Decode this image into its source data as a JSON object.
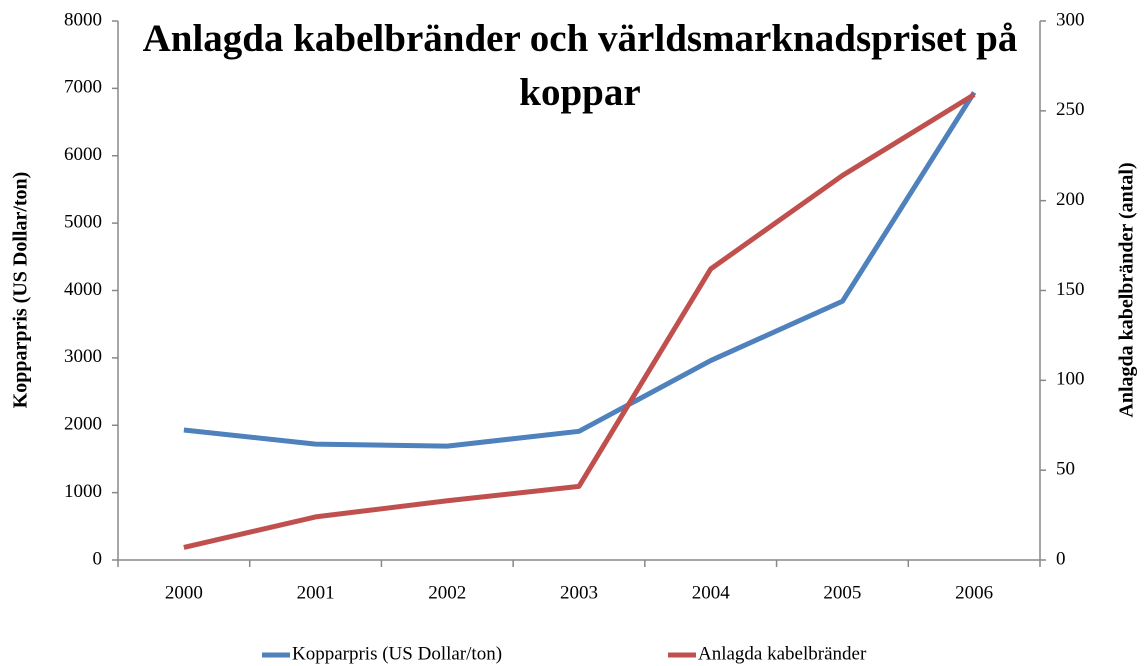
{
  "chart_data": {
    "type": "line",
    "title": "Anlagda kabelbränder och världsmarknadspriset på koppar",
    "ylabel": "Kopparpris (US Dollar/ton)",
    "y2label": "Anlagda kabelbränder (antal)",
    "categories": [
      "2000",
      "2001",
      "2002",
      "2003",
      "2004",
      "2005",
      "2006"
    ],
    "series": [
      {
        "name": "Kopparpris (US Dollar/ton)",
        "color": "#4f81bd",
        "values": [
          1930,
          1720,
          1690,
          1910,
          2960,
          3840,
          6940
        ]
      },
      {
        "name": "Anlagda kabelbränder",
        "color": "#c0504d",
        "axis": "y2",
        "values": [
          7,
          24,
          33,
          41,
          162,
          214,
          259
        ]
      }
    ],
    "ylim": [
      0,
      8000
    ],
    "yticks": [
      0,
      1000,
      2000,
      3000,
      4000,
      5000,
      6000,
      7000,
      8000
    ],
    "y2lim": [
      0,
      300
    ],
    "y2ticks": [
      0,
      50,
      100,
      150,
      200,
      250,
      300
    ],
    "legend": "bottom",
    "grid": false
  }
}
